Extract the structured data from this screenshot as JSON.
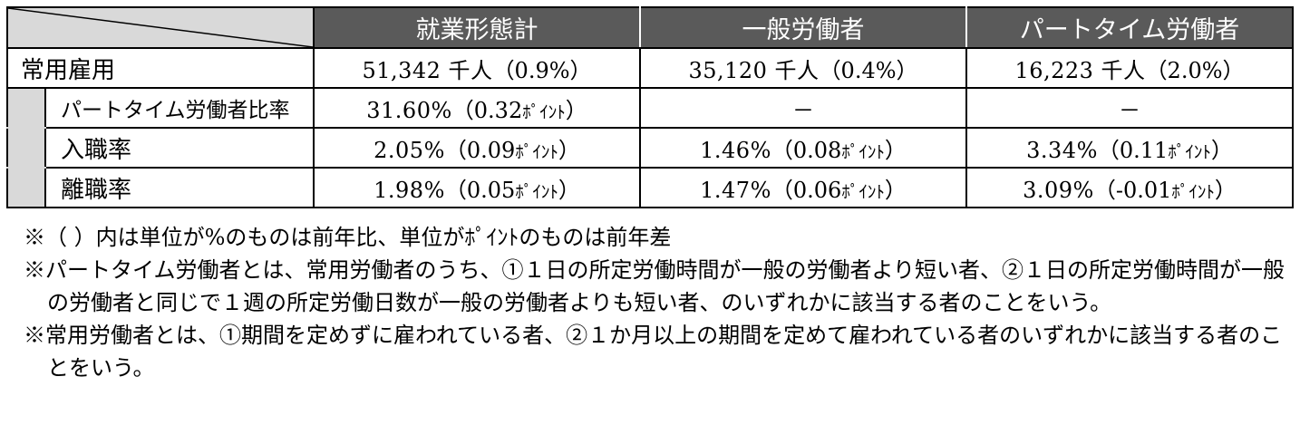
{
  "table": {
    "headers": [
      "就業形態計",
      "一般労働者",
      "パートタイム労働者"
    ],
    "main_row": {
      "label": "常用雇用",
      "cells": [
        {
          "value": "51,342 千人",
          "change": "（0.9%）"
        },
        {
          "value": "35,120 千人",
          "change": "（0.4%）"
        },
        {
          "value": "16,223 千人",
          "change": "（2.0%）"
        }
      ]
    },
    "sub_rows": [
      {
        "label": "パートタイム労働者比率",
        "cells": [
          {
            "value": "31.60%",
            "change": "（0.32",
            "unit": "ﾎﾟｲﾝﾄ",
            "close": "）"
          },
          {
            "dash": "－"
          },
          {
            "dash": "－"
          }
        ]
      },
      {
        "label": "入職率",
        "cells": [
          {
            "value": "2.05%",
            "change": "（0.09",
            "unit": "ﾎﾟｲﾝﾄ",
            "close": "）"
          },
          {
            "value": "1.46%",
            "change": "（0.08",
            "unit": "ﾎﾟｲﾝﾄ",
            "close": "）"
          },
          {
            "value": "3.34%",
            "change": "（0.11",
            "unit": "ﾎﾟｲﾝﾄ",
            "close": "）"
          }
        ]
      },
      {
        "label": "離職率",
        "cells": [
          {
            "value": "1.98%",
            "change": "（0.05",
            "unit": "ﾎﾟｲﾝﾄ",
            "close": "）"
          },
          {
            "value": "1.47%",
            "change": "（0.06",
            "unit": "ﾎﾟｲﾝﾄ",
            "close": "）"
          },
          {
            "value": "3.09%",
            "change": "（-0.01",
            "unit": "ﾎﾟｲﾝﾄ",
            "close": "）"
          }
        ]
      }
    ]
  },
  "notes": [
    "※（ ）内は単位が%のものは前年比、単位がﾎﾟｲﾝﾄのものは前年差",
    "※パートタイム労働者とは、常用労働者のうち、①１日の所定労働時間が一般の労働者より短い者、②１日の所定労働時間が一般の労働者と同じで１週の所定労働日数が一般の労働者よりも短い者、のいずれかに該当する者のことをいう。",
    "※常用労働者とは、①期間を定めずに雇われている者、②１か月以上の期間を定めて雇われている者のいずれかに該当する者のことをいう。"
  ],
  "colors": {
    "header_bg": "#5a5a5a",
    "header_text": "#ffffff",
    "corner_bg": "#d9d9d9",
    "indent_bg": "#d9d9d9"
  }
}
